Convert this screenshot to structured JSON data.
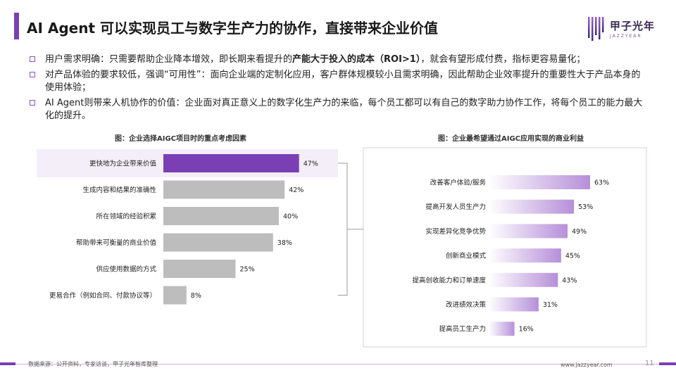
{
  "header": {
    "title": "AI Agent 可以实现员工与数字生产力的协作，直接带来企业价值",
    "logo_cn": "甲子光年",
    "logo_en": "JAZZYEAR",
    "accent": "#7b3fb5"
  },
  "bullets": [
    {
      "pre": "用户需求明确：只需要帮助企业降本增效，即长期来看提升的",
      "bold": "产能大于投入的成本（ROI>1）",
      "post": "，就会有望形成付费，指标更容易量化；"
    },
    {
      "pre": "对产品体验的要求较低，强调“可用性”：面向企业端的定制化应用，客户群体规模较小且需求明确，因此帮助企业效率提升的重要性大于产品本身的使用体验；",
      "bold": "",
      "post": ""
    },
    {
      "pre": "AI Agent则带来人机协作的价值：企业面对真正意义上的数字化生产力的来临，每个员工都可以有自己的数字助力协作工作，将每个员工的能力最大化的提升。",
      "bold": "",
      "post": ""
    }
  ],
  "chart_data": [
    {
      "type": "bar",
      "orientation": "horizontal",
      "title": "图：企业选择AIGC项目时的重点考虑因素",
      "categories": [
        "更快地为企业带来价值",
        "生成内容和结果的准确性",
        "所在领域的经验积累",
        "帮助带来可衡量的商业价值",
        "供应使用数据的方式",
        "更易合作（例如合同、付款协议等）"
      ],
      "values": [
        47,
        42,
        40,
        38,
        25,
        8
      ],
      "value_labels": [
        "47%",
        "42%",
        "40%",
        "38%",
        "25%",
        "8%"
      ],
      "highlight_index": 0,
      "xlim": [
        0,
        50
      ],
      "colors": {
        "highlight": "#7b3fb5",
        "default": "#bdbdbd",
        "highlight_bg": "#f3eef8"
      }
    },
    {
      "type": "bar",
      "orientation": "horizontal",
      "title": "图：企业最希望通过AIGC应用实现的商业利益",
      "categories": [
        "改善客户体验/服务",
        "提高开发人员生产力",
        "实现差异化竞争优势",
        "创新商业模式",
        "提高创收能力和订单速度",
        "改进绩效决策",
        "提高员工生产力"
      ],
      "values": [
        63,
        53,
        49,
        45,
        43,
        31,
        16
      ],
      "value_labels": [
        "63%",
        "53%",
        "49%",
        "45%",
        "43%",
        "31%",
        "16%"
      ],
      "xlim": [
        0,
        70
      ],
      "colors": {
        "gradient_start": "#ffffff",
        "gradient_end": "#b68fd9",
        "panel_border": "#d9cde6"
      }
    }
  ],
  "footer": {
    "source": "数据来源：公开资料，专家访谈，甲子光年智库整理",
    "url": "www.jazzyear.com",
    "page": "11"
  }
}
